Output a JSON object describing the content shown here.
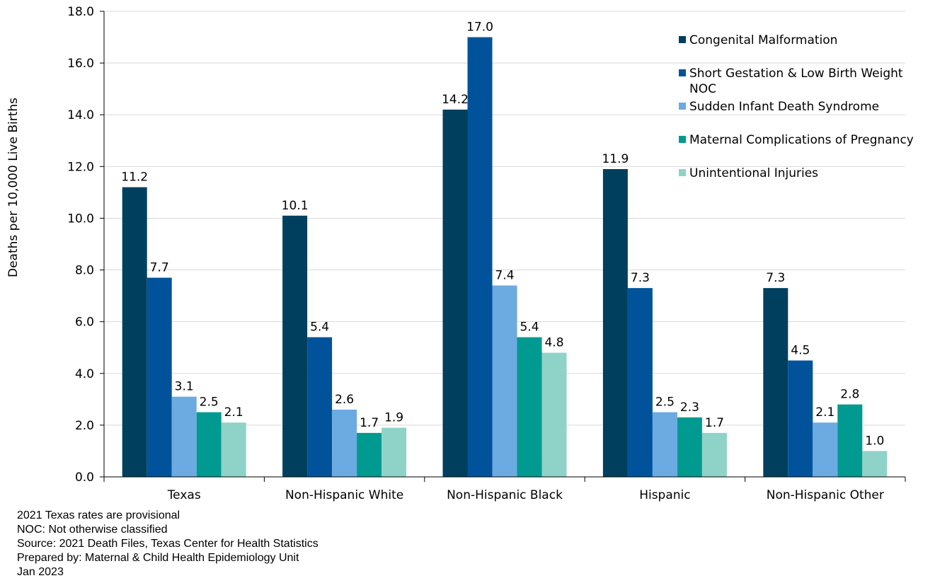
{
  "chart_data": {
    "type": "bar",
    "ylabel": "Deaths per 10,000 Live Births",
    "ylim": [
      0,
      18
    ],
    "yticks": [
      "0.0",
      "2.0",
      "4.0",
      "6.0",
      "8.0",
      "10.0",
      "12.0",
      "14.0",
      "16.0",
      "18.0"
    ],
    "grid": true,
    "legend_position": "top-right",
    "categories": [
      "Texas",
      "Non-Hispanic White",
      "Non-Hispanic Black",
      "Hispanic",
      "Non-Hispanic Other"
    ],
    "series": [
      {
        "name": "Congenital Malformation",
        "legend_lines": [
          "Congenital Malformation"
        ],
        "color": "#003f5e",
        "values": [
          11.2,
          10.1,
          14.2,
          11.9,
          7.3
        ],
        "labels": [
          "11.2",
          "10.1",
          "14.2",
          "11.9",
          "7.3"
        ]
      },
      {
        "name": "Short Gestation & Low Birth Weight NOC",
        "legend_lines": [
          "Short Gestation & Low Birth Weight",
          "NOC"
        ],
        "color": "#00539b",
        "values": [
          7.7,
          5.4,
          17.0,
          7.3,
          4.5
        ],
        "labels": [
          "7.7",
          "5.4",
          "17.0",
          "7.3",
          "4.5"
        ]
      },
      {
        "name": "Sudden Infant Death Syndrome",
        "legend_lines": [
          "Sudden Infant Death Syndrome"
        ],
        "color": "#6caae2",
        "values": [
          3.1,
          2.6,
          7.4,
          2.5,
          2.1
        ],
        "labels": [
          "3.1",
          "2.6",
          "7.4",
          "2.5",
          "2.1"
        ]
      },
      {
        "name": "Maternal Complications of Pregnancy",
        "legend_lines": [
          "Maternal Complications of Pregnancy"
        ],
        "color": "#009a90",
        "values": [
          2.5,
          1.7,
          5.4,
          2.3,
          2.8
        ],
        "labels": [
          "2.5",
          "1.7",
          "5.4",
          "2.3",
          "2.8"
        ]
      },
      {
        "name": "Unintentional Injuries",
        "legend_lines": [
          "Unintentional Injuries"
        ],
        "color": "#8fd3c8",
        "values": [
          2.1,
          1.9,
          4.8,
          1.7,
          1.0
        ],
        "labels": [
          "2.1",
          "1.9",
          "4.8",
          "1.7",
          "1.0"
        ]
      }
    ]
  },
  "notes": {
    "line1": "2021 Texas rates are provisional",
    "line2": "NOC: Not otherwise classified",
    "line3": "Source: 2021 Death Files, Texas Center for Health Statistics",
    "line4": "Prepared by: Maternal & Child Health Epidemiology Unit",
    "line5": "Jan 2023"
  }
}
